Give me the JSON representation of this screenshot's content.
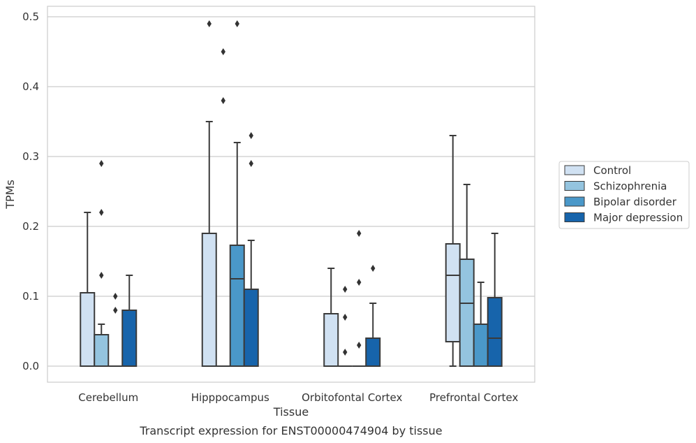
{
  "chart_data": {
    "type": "box",
    "caption": "Transcript expression for ENST00000474904 by tissue",
    "xlabel": "Tissue",
    "ylabel": "TPMs",
    "ylim": [
      -0.023,
      0.515
    ],
    "yticks": [
      0.0,
      0.1,
      0.2,
      0.3,
      0.4,
      0.5
    ],
    "ytick_labels": [
      "0.0",
      "0.1",
      "0.2",
      "0.3",
      "0.4",
      "0.5"
    ],
    "grid": true,
    "legend_position": "right",
    "categories": [
      "Cerebellum",
      "Hipppocampus",
      "Orbitofontal Cortex",
      "Prefrontal Cortex"
    ],
    "series": [
      {
        "name": "Control",
        "color": "#d0e1f2",
        "boxes": [
          {
            "q1": 0.0,
            "median": 0.0,
            "q3": 0.105,
            "whislo": 0.0,
            "whishi": 0.22,
            "fliers": []
          },
          {
            "q1": 0.0,
            "median": 0.0,
            "q3": 0.19,
            "whislo": 0.0,
            "whishi": 0.35,
            "fliers": [
              0.49
            ]
          },
          {
            "q1": 0.0,
            "median": 0.0,
            "q3": 0.075,
            "whislo": 0.0,
            "whishi": 0.14,
            "fliers": []
          },
          {
            "q1": 0.035,
            "median": 0.13,
            "q3": 0.175,
            "whislo": 0.0,
            "whishi": 0.33,
            "fliers": []
          }
        ]
      },
      {
        "name": "Schizophrenia",
        "color": "#94c4df",
        "boxes": [
          {
            "q1": 0.0,
            "median": 0.0,
            "q3": 0.045,
            "whislo": 0.0,
            "whishi": 0.06,
            "fliers": [
              0.13,
              0.22,
              0.29
            ]
          },
          {
            "q1": 0.0,
            "median": 0.0,
            "q3": 0.0,
            "whislo": 0.0,
            "whishi": 0.0,
            "fliers": [
              0.38,
              0.45
            ]
          },
          {
            "q1": 0.0,
            "median": 0.0,
            "q3": 0.0,
            "whislo": 0.0,
            "whishi": 0.0,
            "fliers": [
              0.02,
              0.07,
              0.11
            ]
          },
          {
            "q1": 0.0,
            "median": 0.09,
            "q3": 0.153,
            "whislo": 0.0,
            "whishi": 0.26,
            "fliers": []
          }
        ]
      },
      {
        "name": "Bipolar disorder",
        "color": "#4a98c9",
        "boxes": [
          {
            "q1": 0.0,
            "median": 0.0,
            "q3": 0.0,
            "whislo": 0.0,
            "whishi": 0.0,
            "fliers": [
              0.08,
              0.1
            ]
          },
          {
            "q1": 0.0,
            "median": 0.125,
            "q3": 0.173,
            "whislo": 0.0,
            "whishi": 0.32,
            "fliers": [
              0.49
            ]
          },
          {
            "q1": 0.0,
            "median": 0.0,
            "q3": 0.0,
            "whislo": 0.0,
            "whishi": 0.0,
            "fliers": [
              0.03,
              0.12,
              0.19
            ]
          },
          {
            "q1": 0.0,
            "median": 0.0,
            "q3": 0.06,
            "whislo": 0.0,
            "whishi": 0.12,
            "fliers": []
          }
        ]
      },
      {
        "name": "Major depression",
        "color": "#1764ab",
        "boxes": [
          {
            "q1": 0.0,
            "median": 0.0,
            "q3": 0.08,
            "whislo": 0.0,
            "whishi": 0.13,
            "fliers": []
          },
          {
            "q1": 0.0,
            "median": 0.0,
            "q3": 0.11,
            "whislo": 0.0,
            "whishi": 0.18,
            "fliers": [
              0.29,
              0.33
            ]
          },
          {
            "q1": 0.0,
            "median": 0.0,
            "q3": 0.04,
            "whislo": 0.0,
            "whishi": 0.09,
            "fliers": [
              0.14
            ]
          },
          {
            "q1": 0.0,
            "median": 0.04,
            "q3": 0.098,
            "whislo": 0.0,
            "whishi": 0.19,
            "fliers": []
          }
        ]
      }
    ]
  }
}
